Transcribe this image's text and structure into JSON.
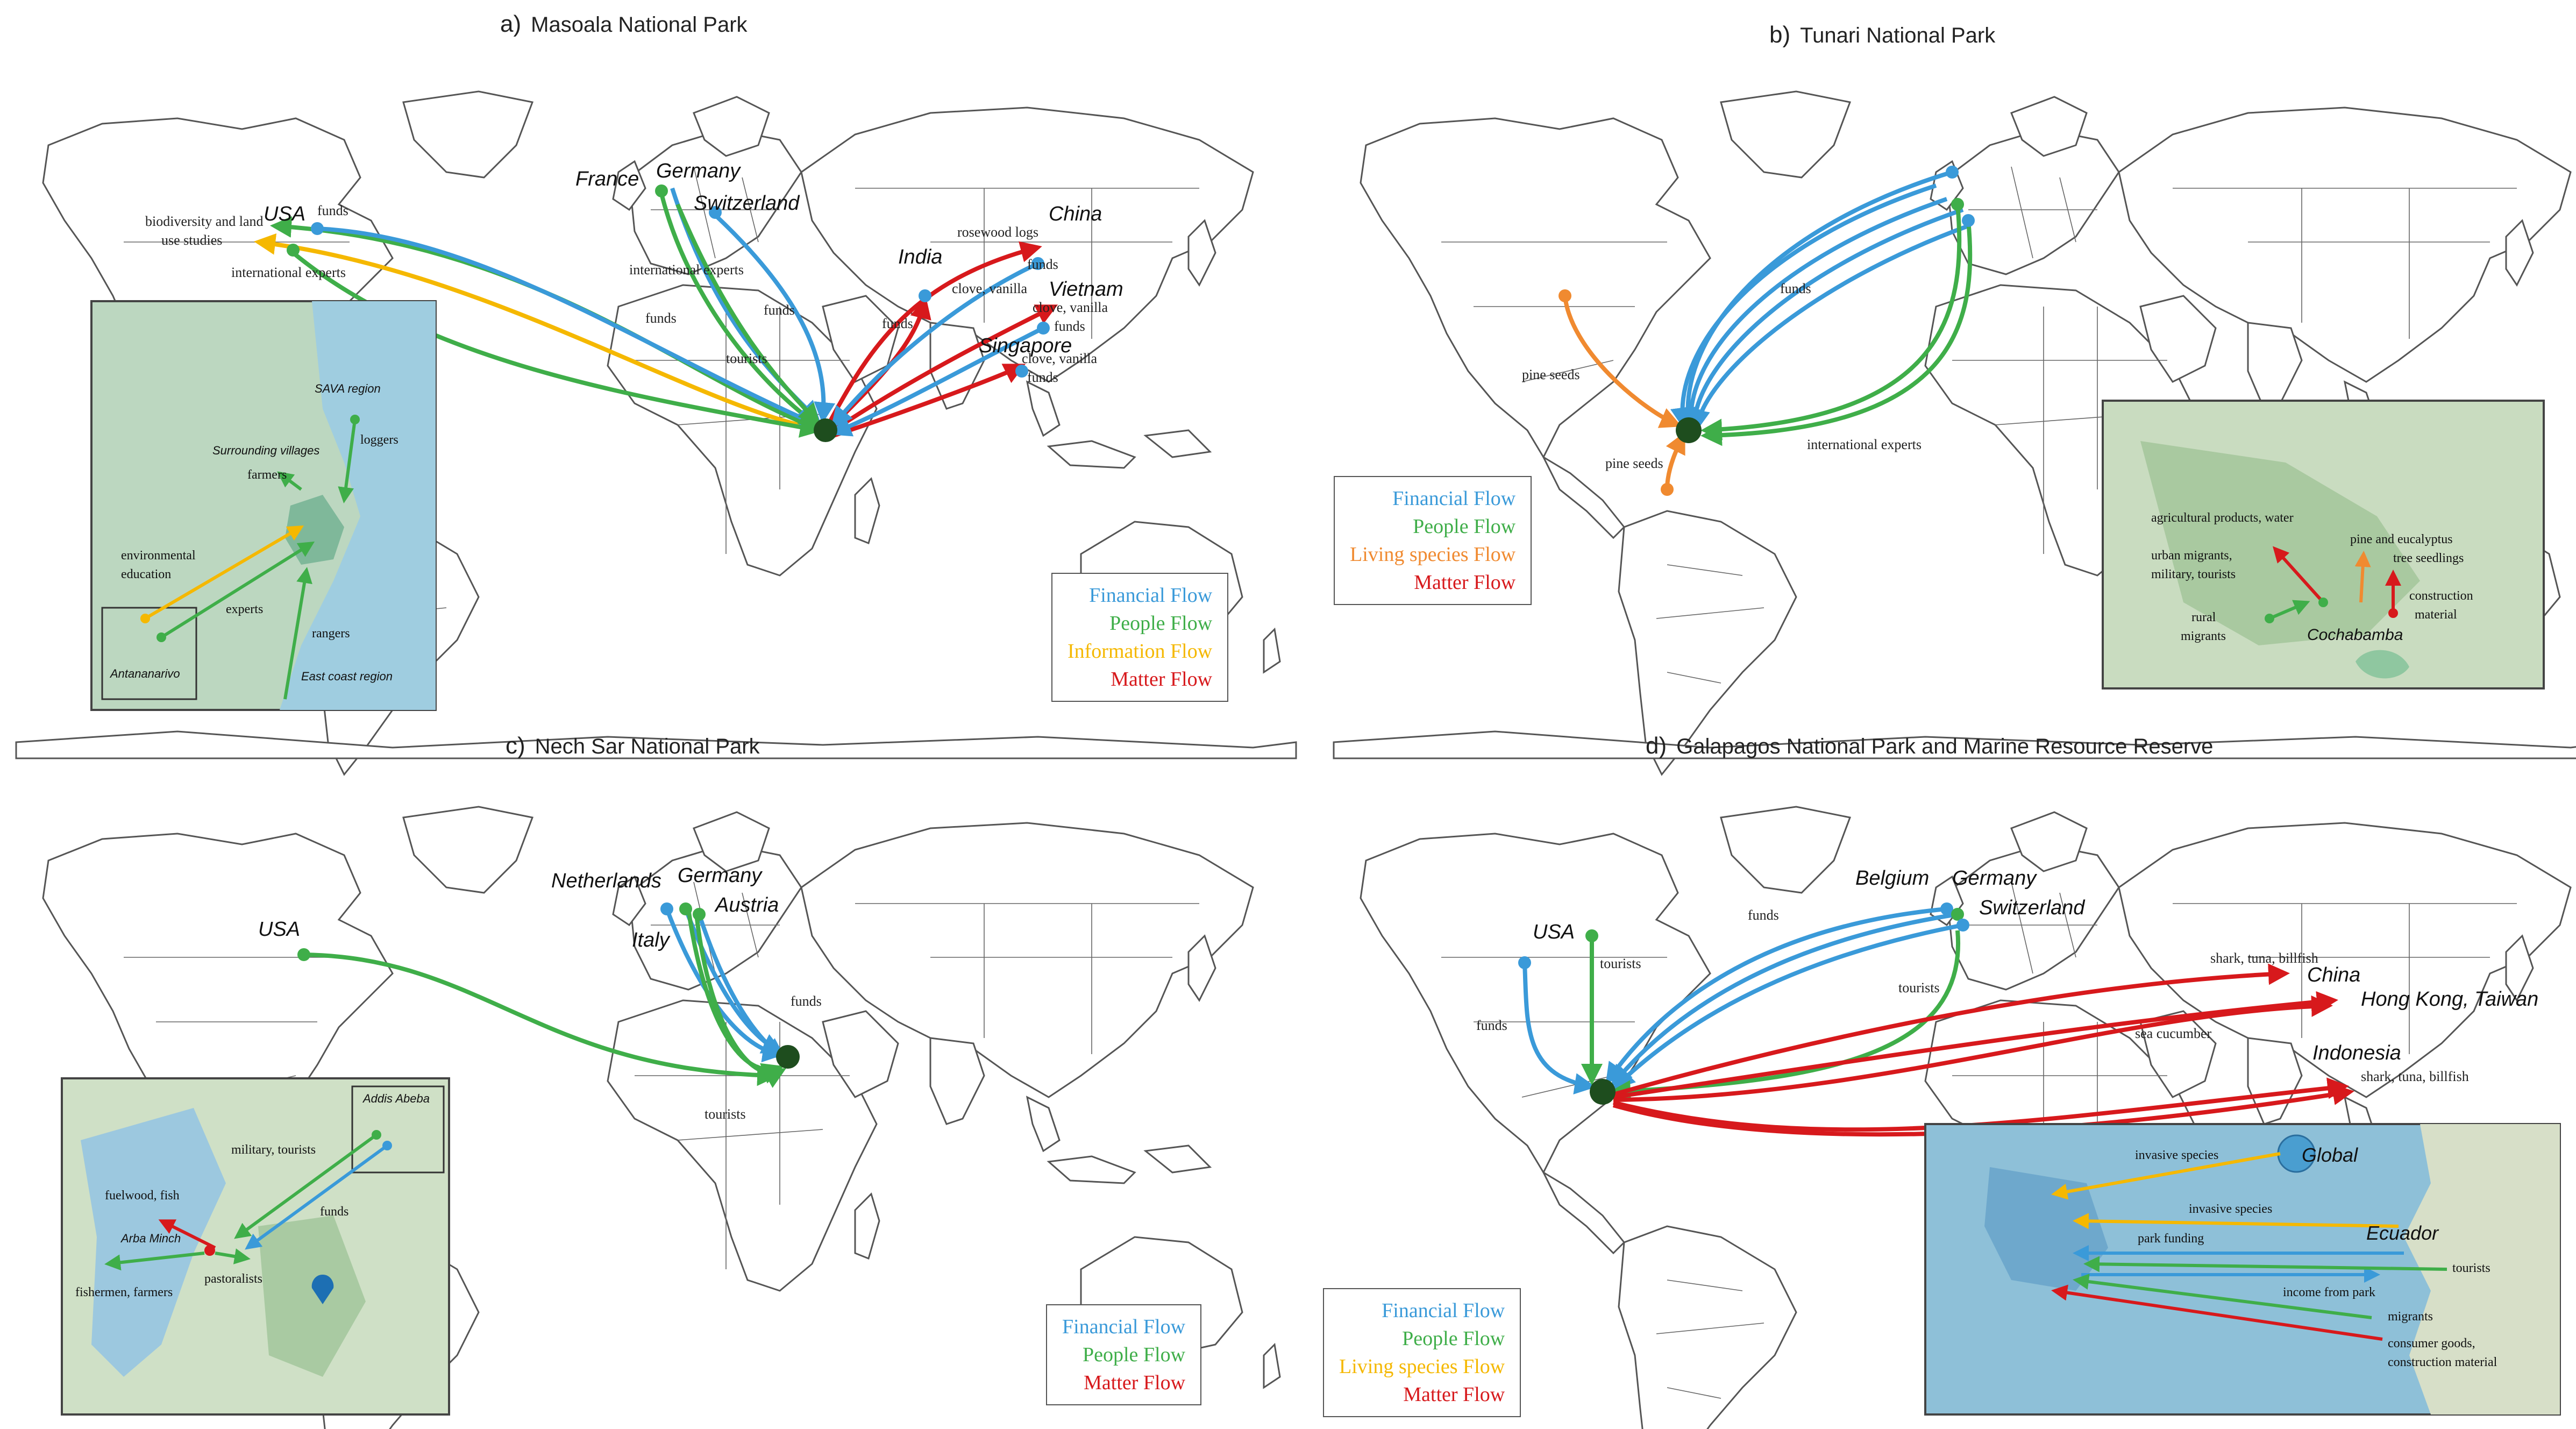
{
  "colors": {
    "financial": "#3a9ad9",
    "people": "#3fae49",
    "information": "#f5b800",
    "matter": "#d7191c",
    "living": "#f08a30",
    "park": "#1e4d1e"
  },
  "panels": {
    "a": {
      "letter": "a)",
      "name": "Masoala National Park",
      "countries": [
        "USA",
        "France",
        "Germany",
        "Switzerland",
        "China",
        "India",
        "Vietnam",
        "Singapore"
      ],
      "labels": [
        "biodiversity and land",
        "use studies",
        "funds",
        "international experts",
        "international experts",
        "funds",
        "funds",
        "tourists",
        "rosewood logs",
        "funds",
        "clove, vanilla",
        "funds",
        "clove, vanilla",
        "funds",
        "clove, vanilla",
        "funds"
      ],
      "inset": {
        "regions": [
          "SAVA region",
          "Surrounding villages",
          "East coast region",
          "Antananarivo"
        ],
        "labels": [
          "loggers",
          "farmers",
          "environmental",
          "education",
          "experts",
          "rangers"
        ]
      },
      "legend": [
        "Financial Flow",
        "People Flow",
        "Information Flow",
        "Matter Flow"
      ]
    },
    "b": {
      "letter": "b)",
      "name": "Tunari National Park",
      "labels": [
        "funds",
        "pine seeds",
        "pine seeds",
        "international experts"
      ],
      "inset": {
        "labels": [
          "agricultural products, water",
          "pine and eucalyptus",
          "tree seedlings",
          "urban migrants,",
          "military, tourists",
          "construction",
          "material",
          "rural",
          "migrants"
        ],
        "city": "Cochabamba"
      },
      "legend": [
        "Financial Flow",
        "People Flow",
        "Living species  Flow",
        "Matter Flow"
      ]
    },
    "c": {
      "letter": "c)",
      "name": "Nech Sar National Park",
      "countries": [
        "USA",
        "Netherlands",
        "Germany",
        "Austria",
        "Italy"
      ],
      "labels": [
        "funds",
        "tourists"
      ],
      "inset": {
        "regions": [
          "Addis Abeba",
          "Arba Minch"
        ],
        "labels": [
          "military, tourists",
          "fuelwood, fish",
          "funds",
          "fishermen, farmers",
          "pastoralists"
        ]
      },
      "legend": [
        "Financial Flow",
        "People Flow",
        "Matter Flow"
      ]
    },
    "d": {
      "letter": "d)",
      "name": "Galapagos National Park and Marine Resource Reserve",
      "countries": [
        "USA",
        "Belgium",
        "Germany",
        "Switzerland",
        "China",
        "Hong Kong, Taiwan",
        "Indonesia"
      ],
      "labels": [
        "funds",
        "funds",
        "tourists",
        "tourists",
        "shark, tuna, billfish",
        "sea cucumber",
        "shark, tuna, billfish"
      ],
      "inset": {
        "regions": [
          "Global",
          "Ecuador"
        ],
        "labels": [
          "invasive species",
          "invasive species",
          "park funding",
          "income from park",
          "tourists",
          "migrants",
          "consumer goods,",
          "construction material"
        ]
      },
      "legend": [
        "Financial Flow",
        "People Flow",
        "Living species Flow",
        "Matter Flow"
      ]
    }
  }
}
